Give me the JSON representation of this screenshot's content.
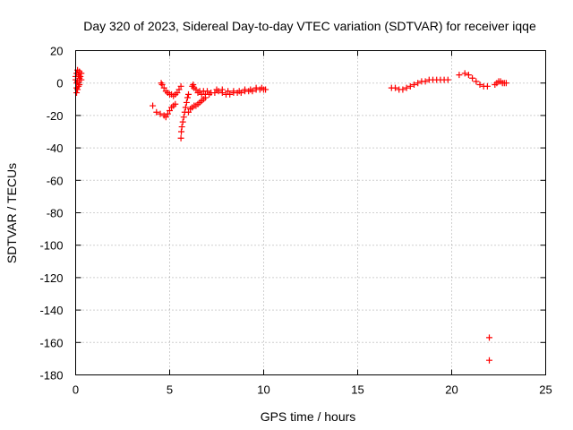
{
  "chart_data": {
    "type": "scatter",
    "title": "Day 320 of 2023, Sidereal Day-to-day VTEC variation (SDTVAR) for receiver iqqe",
    "xlabel": "GPS time / hours",
    "ylabel": "SDTVAR / TECUs",
    "xlim": [
      0,
      25
    ],
    "ylim": [
      -180,
      20
    ],
    "xticks": [
      0,
      5,
      10,
      15,
      20,
      25
    ],
    "yticks": [
      20,
      0,
      -20,
      -40,
      -60,
      -80,
      -100,
      -120,
      -140,
      -160,
      -180
    ],
    "grid": true,
    "marker": "+",
    "color": "#ff0000",
    "series": [
      {
        "name": "SDTVAR",
        "points": [
          [
            0.0,
            4
          ],
          [
            0.0,
            2
          ],
          [
            0.05,
            6
          ],
          [
            0.05,
            0
          ],
          [
            0.05,
            -3
          ],
          [
            0.05,
            -6
          ],
          [
            0.1,
            8
          ],
          [
            0.1,
            1
          ],
          [
            0.1,
            -4
          ],
          [
            0.15,
            5
          ],
          [
            0.15,
            -2
          ],
          [
            0.2,
            7
          ],
          [
            0.2,
            3
          ],
          [
            0.2,
            -1
          ],
          [
            0.25,
            4
          ],
          [
            0.3,
            6
          ],
          [
            0.3,
            2
          ],
          [
            4.1,
            -14
          ],
          [
            4.3,
            -18
          ],
          [
            4.5,
            -19
          ],
          [
            4.7,
            -20
          ],
          [
            4.8,
            -21
          ],
          [
            4.9,
            -19
          ],
          [
            4.55,
            0
          ],
          [
            4.6,
            -1
          ],
          [
            4.7,
            -3
          ],
          [
            4.8,
            -5
          ],
          [
            4.9,
            -6
          ],
          [
            5.0,
            -7
          ],
          [
            5.1,
            -7
          ],
          [
            5.2,
            -8
          ],
          [
            5.3,
            -7
          ],
          [
            5.4,
            -6
          ],
          [
            5.5,
            -4
          ],
          [
            5.6,
            -2
          ],
          [
            5.0,
            -17
          ],
          [
            5.1,
            -15
          ],
          [
            5.2,
            -14
          ],
          [
            5.3,
            -13
          ],
          [
            5.6,
            -34
          ],
          [
            5.62,
            -30
          ],
          [
            5.65,
            -27
          ],
          [
            5.7,
            -24
          ],
          [
            5.75,
            -21
          ],
          [
            5.8,
            -18
          ],
          [
            5.85,
            -15
          ],
          [
            5.9,
            -12
          ],
          [
            5.95,
            -9
          ],
          [
            6.0,
            -7
          ],
          [
            6.0,
            -18
          ],
          [
            6.1,
            -16
          ],
          [
            6.2,
            -15
          ],
          [
            6.3,
            -14
          ],
          [
            6.4,
            -14
          ],
          [
            6.5,
            -13
          ],
          [
            6.6,
            -12
          ],
          [
            6.7,
            -11
          ],
          [
            6.8,
            -10
          ],
          [
            6.9,
            -9
          ],
          [
            6.2,
            -2
          ],
          [
            6.25,
            -1
          ],
          [
            6.3,
            -3
          ],
          [
            6.4,
            -4
          ],
          [
            6.6,
            -5
          ],
          [
            6.8,
            -5
          ],
          [
            7.0,
            -5
          ],
          [
            7.2,
            -6
          ],
          [
            7.4,
            -6
          ],
          [
            7.6,
            -5
          ],
          [
            6.5,
            -6
          ],
          [
            6.7,
            -7
          ],
          [
            6.9,
            -7
          ],
          [
            7.1,
            -7
          ],
          [
            7.8,
            -6
          ],
          [
            8.0,
            -7
          ],
          [
            8.2,
            -7
          ],
          [
            8.4,
            -6
          ],
          [
            8.6,
            -6
          ],
          [
            8.8,
            -6
          ],
          [
            9.0,
            -5
          ],
          [
            9.2,
            -5
          ],
          [
            9.4,
            -5
          ],
          [
            9.6,
            -4
          ],
          [
            9.8,
            -4
          ],
          [
            10.0,
            -4
          ],
          [
            10.1,
            -4
          ],
          [
            7.5,
            -4
          ],
          [
            7.8,
            -4
          ],
          [
            8.1,
            -5
          ],
          [
            8.4,
            -5
          ],
          [
            8.7,
            -5
          ],
          [
            9.0,
            -4
          ],
          [
            9.3,
            -4
          ],
          [
            9.6,
            -3
          ],
          [
            9.9,
            -3
          ],
          [
            16.8,
            -3
          ],
          [
            17.0,
            -3
          ],
          [
            17.2,
            -4
          ],
          [
            17.4,
            -4
          ],
          [
            17.6,
            -3
          ],
          [
            17.8,
            -2
          ],
          [
            18.0,
            -1
          ],
          [
            18.2,
            0
          ],
          [
            18.4,
            1
          ],
          [
            18.6,
            1
          ],
          [
            18.8,
            2
          ],
          [
            19.0,
            2
          ],
          [
            19.2,
            2
          ],
          [
            19.4,
            2
          ],
          [
            19.6,
            2
          ],
          [
            19.8,
            2
          ],
          [
            20.4,
            5
          ],
          [
            20.7,
            6
          ],
          [
            20.9,
            5
          ],
          [
            21.1,
            3
          ],
          [
            21.3,
            1
          ],
          [
            21.5,
            -1
          ],
          [
            21.7,
            -2
          ],
          [
            21.9,
            -2
          ],
          [
            22.3,
            -1
          ],
          [
            22.4,
            0
          ],
          [
            22.5,
            1
          ],
          [
            22.6,
            1
          ],
          [
            22.7,
            0
          ],
          [
            22.8,
            0
          ],
          [
            22.9,
            0
          ],
          [
            22.0,
            -157
          ],
          [
            22.0,
            -171
          ]
        ]
      }
    ]
  }
}
